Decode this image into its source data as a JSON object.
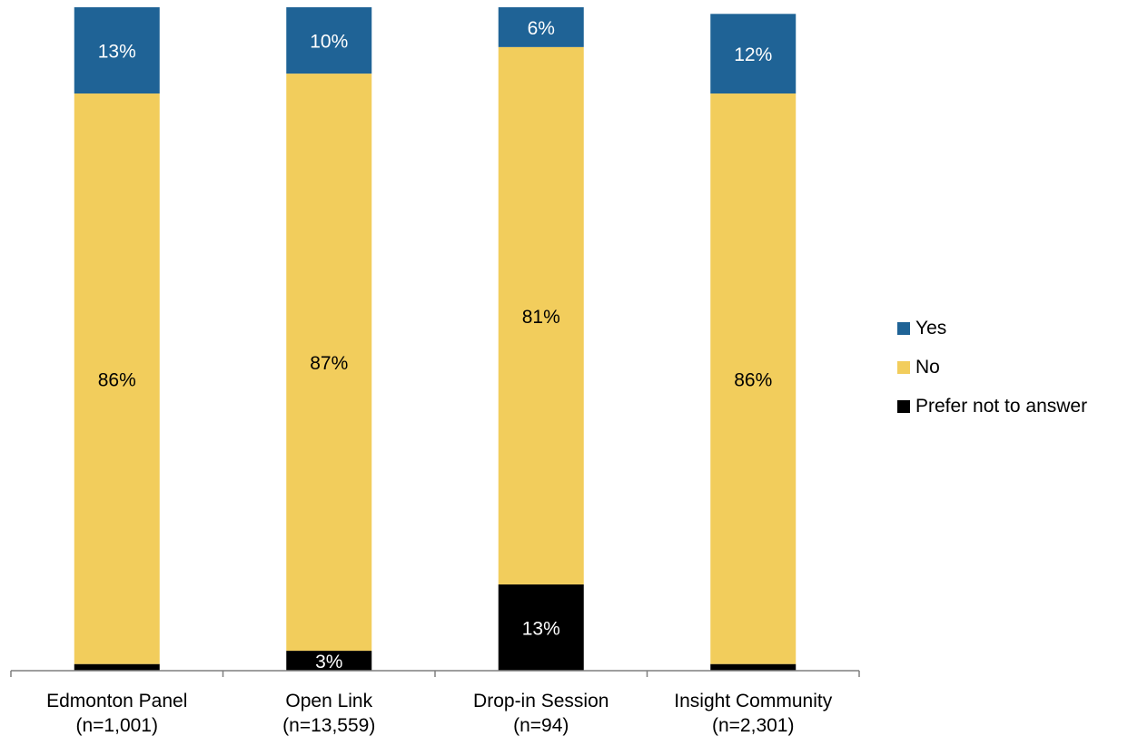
{
  "chart_data": {
    "type": "bar",
    "stacked": true,
    "percent_stacked": true,
    "categories": [
      {
        "name": "Edmonton Panel",
        "n": "(n=1,001)"
      },
      {
        "name": "Open Link",
        "n": "(n=13,559)"
      },
      {
        "name": "Drop-in Session",
        "n": "(n=94)"
      },
      {
        "name": "Insight Community",
        "n": "(n=2,301)"
      }
    ],
    "series": [
      {
        "name": "Prefer not to answer",
        "color": "#000000",
        "label_color": "#ffffff",
        "values": [
          1,
          3,
          13,
          1
        ],
        "labels": [
          "",
          "3%",
          "13%",
          ""
        ]
      },
      {
        "name": "No",
        "color": "#F2CD5C",
        "label_color": "#000000",
        "values": [
          86,
          87,
          81,
          86
        ],
        "labels": [
          "86%",
          "87%",
          "81%",
          "86%"
        ]
      },
      {
        "name": "Yes",
        "color": "#1F6396",
        "label_color": "#ffffff",
        "values": [
          13,
          10,
          6,
          12
        ],
        "labels": [
          "13%",
          "10%",
          "6%",
          "12%"
        ]
      }
    ],
    "legend_order": [
      "Yes",
      "No",
      "Prefer not to answer"
    ],
    "ylim": [
      0,
      100
    ],
    "title": "",
    "xlabel": "",
    "ylabel": "",
    "grid": false,
    "legend_position": "right"
  },
  "legend": {
    "items": [
      {
        "label": "Yes",
        "color": "#1F6396"
      },
      {
        "label": "No",
        "color": "#F2CD5C"
      },
      {
        "label": "Prefer not to answer",
        "color": "#000000"
      }
    ]
  }
}
